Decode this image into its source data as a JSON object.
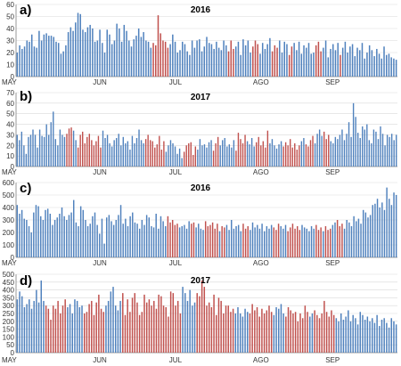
{
  "colors": {
    "blue": "#4f81bd",
    "red": "#c0504d",
    "grid": "#d9d9d9",
    "axis": "#808080"
  },
  "chart_data": [
    {
      "type": "bar",
      "panel_label": "a)",
      "title": "2016",
      "ylim": [
        0,
        60
      ],
      "yticks": [
        0,
        10,
        20,
        30,
        40,
        50,
        60
      ],
      "x_tick_labels": [
        "MAY",
        "JUN",
        "JUL",
        "AGO",
        "SEP"
      ],
      "grid": true,
      "values": [
        20,
        26,
        23,
        25,
        30,
        29,
        35,
        25,
        24,
        38,
        30,
        35,
        36,
        34,
        34,
        33,
        29,
        28,
        19,
        21,
        26,
        37,
        41,
        38,
        45,
        53,
        52,
        39,
        37,
        41,
        43,
        40,
        29,
        30,
        39,
        28,
        20,
        39,
        35,
        27,
        30,
        44,
        40,
        29,
        43,
        38,
        30,
        25,
        31,
        34,
        40,
        33,
        37,
        30,
        29,
        24,
        28,
        26,
        51,
        36,
        30,
        29,
        24,
        27,
        35,
        29,
        20,
        22,
        29,
        27,
        21,
        18,
        30,
        24,
        30,
        31,
        21,
        25,
        33,
        28,
        27,
        23,
        29,
        24,
        22,
        30,
        26,
        21,
        30,
        23,
        25,
        29,
        18,
        31,
        26,
        30,
        20,
        25,
        30,
        27,
        19,
        28,
        23,
        27,
        32,
        21,
        26,
        24,
        30,
        20,
        29,
        27,
        18,
        25,
        28,
        22,
        29,
        19,
        26,
        24,
        28,
        19,
        20,
        26,
        29,
        21,
        24,
        30,
        16,
        23,
        27,
        22,
        28,
        18,
        24,
        29,
        20,
        25,
        27,
        17,
        24,
        22,
        28,
        15,
        20,
        26,
        22,
        17,
        23,
        19,
        15,
        25,
        18,
        19,
        16,
        15,
        14
      ],
      "red_indices": [
        56,
        57,
        58,
        59,
        60,
        61,
        62,
        87,
        88,
        89,
        97,
        98,
        99,
        105,
        106,
        107,
        112,
        113,
        123,
        124,
        125,
        133
      ]
    },
    {
      "type": "bar",
      "panel_label": "b)",
      "title": "2017",
      "ylim": [
        0,
        70
      ],
      "yticks": [
        0,
        10,
        20,
        30,
        40,
        50,
        60,
        70
      ],
      "x_tick_labels": [
        "MAY",
        "JUN",
        "JUL",
        "AGO",
        "SEP"
      ],
      "grid": true,
      "values": [
        30,
        25,
        33,
        20,
        12,
        28,
        30,
        35,
        30,
        18,
        35,
        29,
        28,
        40,
        30,
        42,
        52,
        26,
        20,
        35,
        30,
        28,
        31,
        36,
        37,
        34,
        25,
        18,
        30,
        33,
        22,
        28,
        31,
        25,
        20,
        24,
        29,
        18,
        34,
        27,
        30,
        22,
        19,
        25,
        27,
        31,
        20,
        28,
        22,
        24,
        16,
        29,
        22,
        27,
        35,
        25,
        22,
        26,
        30,
        25,
        24,
        18,
        21,
        29,
        16,
        24,
        14,
        20,
        25,
        22,
        19,
        12,
        17,
        8,
        14,
        20,
        22,
        23,
        11,
        19,
        16,
        26,
        20,
        21,
        18,
        23,
        25,
        15,
        22,
        28,
        20,
        25,
        27,
        19,
        21,
        18,
        25,
        15,
        32,
        26,
        22,
        30,
        24,
        21,
        27,
        19,
        23,
        28,
        20,
        24,
        18,
        34,
        22,
        26,
        20,
        17,
        21,
        24,
        19,
        23,
        20,
        26,
        18,
        22,
        16,
        20,
        24,
        27,
        21,
        19,
        25,
        29,
        22,
        31,
        35,
        29,
        33,
        26,
        30,
        24,
        22,
        28,
        26,
        30,
        35,
        25,
        31,
        42,
        28,
        60,
        47,
        32,
        27,
        38,
        35,
        40,
        25,
        22,
        35,
        33,
        26,
        38,
        31,
        20,
        30,
        28,
        31,
        25,
        30
      ],
      "red_indices": [
        22,
        23,
        24,
        27,
        28,
        29,
        30,
        31,
        32,
        33,
        34,
        35,
        36,
        37,
        57,
        58,
        59,
        60,
        61,
        62,
        63,
        64,
        65,
        74,
        75,
        76,
        77,
        78,
        79,
        87,
        88,
        89,
        97,
        98,
        99,
        100,
        101,
        106,
        107,
        108,
        109,
        110,
        111,
        118,
        119,
        120,
        121,
        122,
        123,
        124,
        125,
        128,
        129,
        130,
        131,
        136,
        137,
        138
      ]
    },
    {
      "type": "bar",
      "panel_label": "c)",
      "title": "2016",
      "ylim": [
        0,
        600
      ],
      "yticks": [
        0,
        100,
        200,
        300,
        400,
        500,
        600
      ],
      "x_tick_labels": [
        "MAY",
        "JUN",
        "JUL",
        "AGO",
        "SEP"
      ],
      "grid": true,
      "values": [
        420,
        350,
        380,
        310,
        300,
        250,
        200,
        360,
        420,
        410,
        330,
        300,
        380,
        390,
        350,
        260,
        300,
        320,
        350,
        400,
        330,
        300,
        340,
        360,
        460,
        280,
        250,
        410,
        380,
        300,
        250,
        270,
        330,
        360,
        260,
        190,
        310,
        110,
        320,
        340,
        290,
        260,
        300,
        340,
        420,
        270,
        310,
        250,
        330,
        360,
        280,
        270,
        230,
        300,
        260,
        340,
        320,
        250,
        240,
        350,
        230,
        330,
        290,
        250,
        330,
        280,
        300,
        260,
        270,
        240,
        250,
        260,
        230,
        290,
        270,
        280,
        240,
        270,
        230,
        220,
        290,
        250,
        260,
        280,
        230,
        270,
        210,
        250,
        240,
        260,
        220,
        300,
        230,
        250,
        260,
        210,
        270,
        230,
        250,
        220,
        280,
        240,
        260,
        230,
        270,
        210,
        250,
        230,
        260,
        240,
        220,
        270,
        250,
        230,
        260,
        210,
        240,
        270,
        230,
        250,
        220,
        260,
        240,
        230,
        210,
        250,
        230,
        260,
        220,
        240,
        210,
        250,
        220,
        230,
        260,
        280,
        300,
        250,
        270,
        230,
        300,
        280,
        250,
        330,
        290,
        310,
        270,
        380,
        360,
        320,
        340,
        420,
        430,
        470,
        400,
        440,
        380,
        560,
        470,
        420,
        520,
        500
      ],
      "red_indices": [
        64,
        65,
        66,
        67,
        68,
        74,
        75,
        80,
        81,
        82,
        83,
        84,
        85,
        87,
        88,
        96,
        97,
        98,
        109,
        110,
        111,
        115,
        116,
        117,
        118,
        119,
        120,
        127,
        128,
        129,
        131,
        132,
        133,
        136,
        137,
        138
      ]
    },
    {
      "type": "bar",
      "panel_label": "d)",
      "title": "2017",
      "ylim": [
        0,
        500
      ],
      "yticks": [
        0,
        50,
        100,
        150,
        200,
        250,
        300,
        350,
        400,
        450,
        500
      ],
      "x_tick_labels": [
        "MAY",
        "JUN",
        "JUL",
        "AGO",
        "SEP"
      ],
      "grid": true,
      "values": [
        340,
        390,
        360,
        290,
        310,
        340,
        280,
        330,
        400,
        320,
        460,
        330,
        300,
        280,
        210,
        300,
        280,
        330,
        250,
        300,
        340,
        290,
        310,
        250,
        340,
        330,
        290,
        300,
        250,
        260,
        310,
        330,
        240,
        320,
        370,
        280,
        260,
        300,
        330,
        390,
        420,
        300,
        270,
        330,
        380,
        240,
        340,
        260,
        350,
        380,
        320,
        240,
        260,
        370,
        320,
        340,
        300,
        330,
        280,
        370,
        360,
        300,
        290,
        230,
        390,
        380,
        300,
        330,
        250,
        420,
        380,
        330,
        400,
        300,
        320,
        380,
        360,
        460,
        420,
        300,
        320,
        290,
        370,
        240,
        350,
        330,
        250,
        300,
        300,
        260,
        280,
        250,
        290,
        250,
        230,
        280,
        260,
        250,
        310,
        270,
        290,
        230,
        280,
        250,
        270,
        300,
        260,
        240,
        290,
        280,
        310,
        250,
        230,
        290,
        270,
        250,
        260,
        200,
        250,
        220,
        300,
        260,
        230,
        250,
        270,
        240,
        220,
        250,
        330,
        260,
        230,
        270,
        240,
        220,
        200,
        250,
        210,
        230,
        270,
        200,
        240,
        220,
        180,
        260,
        240,
        210,
        230,
        200,
        220,
        190,
        240,
        170,
        210,
        220,
        190,
        160,
        220,
        200,
        180
      ],
      "red_indices": [
        12,
        13,
        14,
        15,
        16,
        17,
        18,
        19,
        20,
        28,
        29,
        30,
        31,
        32,
        33,
        34,
        35,
        36,
        44,
        45,
        46,
        47,
        48,
        49,
        50,
        51,
        52,
        53,
        54,
        55,
        56,
        57,
        58,
        59,
        60,
        61,
        62,
        63,
        64,
        65,
        66,
        67,
        68,
        75,
        76,
        77,
        78,
        79,
        80,
        81,
        82,
        83,
        84,
        85,
        86,
        87,
        88,
        89,
        90,
        97,
        98,
        99,
        100,
        101,
        102,
        103,
        104,
        105,
        106,
        112,
        113,
        114,
        115,
        116,
        117,
        118,
        119,
        120,
        121,
        124,
        125,
        126,
        127,
        128,
        129,
        130,
        131,
        132
      ]
    }
  ]
}
